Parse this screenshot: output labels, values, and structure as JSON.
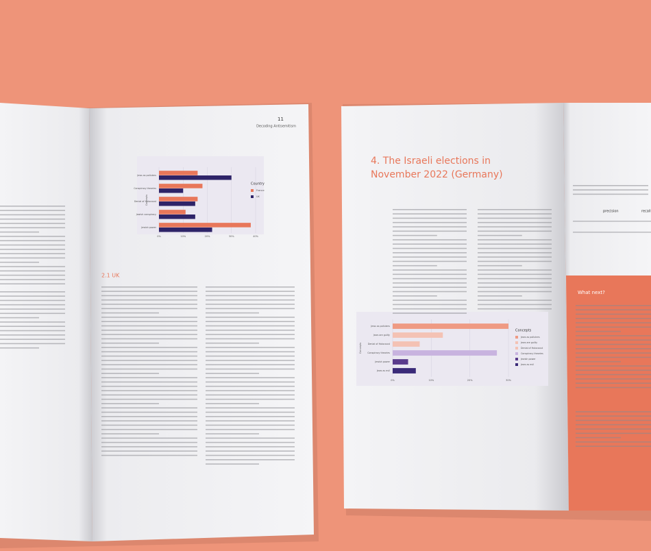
{
  "left_page": {
    "page_number": "11",
    "running_head": "Decoding Antisemitism",
    "section": "2.1 UK",
    "chart_data": {
      "type": "hbar",
      "y_label": "Concepts",
      "legend_title": "Country",
      "categories": [
        "Jews as polluters",
        "Conspiracy theories",
        "Denial of Holocaust",
        "Jewish conspiracy",
        "Jewish power"
      ],
      "series": [
        {
          "name": "France",
          "color": "#e8775a",
          "values": [
            16,
            18,
            16,
            11,
            38
          ]
        },
        {
          "name": "UK",
          "color": "#2e2468",
          "values": [
            30,
            10,
            15,
            15,
            22
          ]
        }
      ],
      "xlim": [
        0,
        40
      ],
      "xticks": [
        {
          "value": 0,
          "label": "0%"
        },
        {
          "value": 10,
          "label": "10%"
        },
        {
          "value": 20,
          "label": "20%"
        },
        {
          "value": 30,
          "label": "30%"
        },
        {
          "value": 40,
          "label": "40%"
        }
      ]
    }
  },
  "right_page": {
    "heading": [
      "4. The Israeli elections in",
      "November 2022 (Germany)"
    ],
    "chart_data": {
      "type": "hbar",
      "y_label": "Concepts",
      "legend_title": "Concepts",
      "categories": [
        "Jews as polluters",
        "Jews are guilty",
        "Denial of Holocaust",
        "Conspiracy theories",
        "Jewish power",
        "Jews as evil"
      ],
      "values": [
        30,
        13,
        7,
        27,
        4,
        6
      ],
      "colors": [
        "#ef9a83",
        "#f4c2b4",
        "#f4c2b4",
        "#c8b3df",
        "#5a3b8c",
        "#3a2a78"
      ],
      "xlim": [
        0,
        30
      ],
      "xticks": [
        {
          "value": 0,
          "label": "0%"
        },
        {
          "value": 10,
          "label": "10%"
        },
        {
          "value": 20,
          "label": "20%"
        },
        {
          "value": 30,
          "label": "30%"
        }
      ]
    }
  },
  "far_right_page": {
    "table_headers": [
      "precision",
      "recall"
    ],
    "section": "What next?"
  }
}
